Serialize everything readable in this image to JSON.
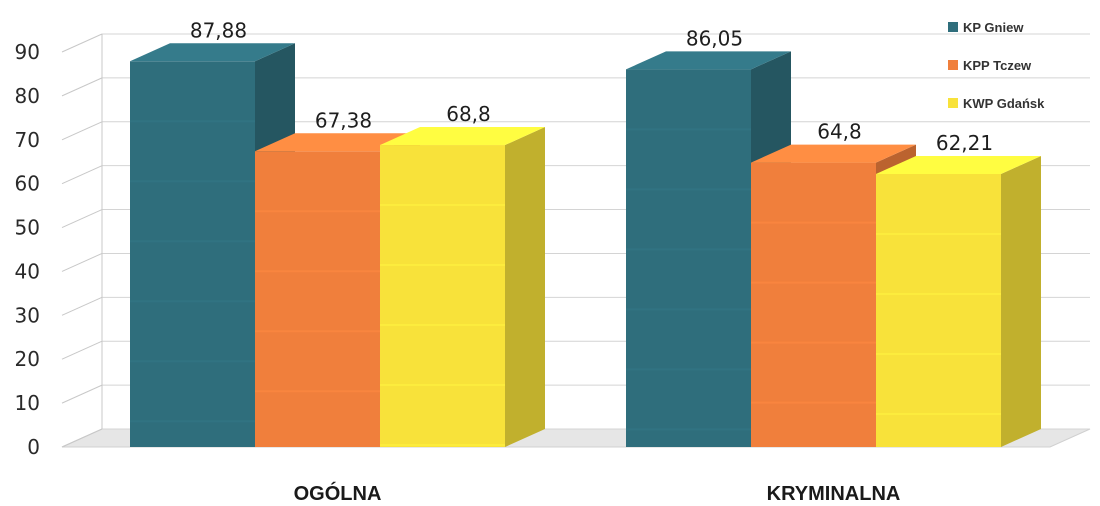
{
  "chart_data": {
    "type": "bar",
    "categories": [
      "OGÓLNA",
      "KRYMINALNA"
    ],
    "series": [
      {
        "name": "KP Gniew",
        "values": [
          87.88,
          86.05
        ],
        "labels": [
          "87,88",
          "86,05"
        ],
        "color": "#2f6e7c"
      },
      {
        "name": "KPP Tczew",
        "values": [
          67.38,
          64.8
        ],
        "labels": [
          "67,38",
          "64,8"
        ],
        "color": "#f07f3c"
      },
      {
        "name": "KWP Gdańsk",
        "values": [
          68.8,
          62.21
        ],
        "labels": [
          "68,8",
          "62,21"
        ],
        "color": "#f8e23a"
      }
    ],
    "yticks": [
      "0",
      "10",
      "20",
      "30",
      "40",
      "50",
      "60",
      "70",
      "80",
      "90"
    ],
    "ylim": [
      0,
      90
    ],
    "grid": true,
    "legend_position": "top-right",
    "style": "3d-column"
  }
}
